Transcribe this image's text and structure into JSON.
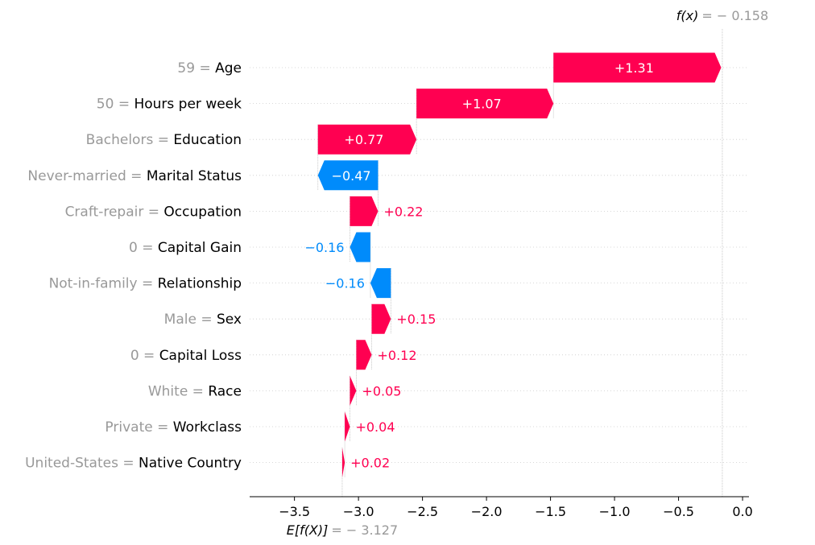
{
  "chart_data": {
    "type": "waterfall",
    "base_value": -3.127,
    "base_label_prefix": "E[f(X)]",
    "base_label_value": "= − 3.127",
    "output_value": -0.158,
    "output_label_prefix": "f(x)",
    "output_label_value": "= − 0.158",
    "xlim": [
      -3.85,
      0.05
    ],
    "xticks": [
      -3.5,
      -3.0,
      -2.5,
      -2.0,
      -1.5,
      -1.0,
      -0.5,
      0.0
    ],
    "xtick_labels": [
      "−3.5",
      "−3.0",
      "−2.5",
      "−2.0",
      "−1.5",
      "−1.0",
      "−0.5",
      "0.0"
    ],
    "features": [
      {
        "value": "59",
        "name": "Age",
        "contribution": 1.31,
        "label": "+1.31"
      },
      {
        "value": "50",
        "name": "Hours per week",
        "contribution": 1.07,
        "label": "+1.07"
      },
      {
        "value": "Bachelors",
        "name": "Education",
        "contribution": 0.77,
        "label": "+0.77"
      },
      {
        "value": "Never-married",
        "name": "Marital Status",
        "contribution": -0.47,
        "label": "−0.47"
      },
      {
        "value": "Craft-repair",
        "name": "Occupation",
        "contribution": 0.22,
        "label": "+0.22"
      },
      {
        "value": "0",
        "name": "Capital Gain",
        "contribution": -0.16,
        "label": "−0.16"
      },
      {
        "value": "Not-in-family",
        "name": "Relationship",
        "contribution": -0.16,
        "label": "−0.16"
      },
      {
        "value": "Male",
        "name": "Sex",
        "contribution": 0.15,
        "label": "+0.15"
      },
      {
        "value": "0",
        "name": "Capital Loss",
        "contribution": 0.12,
        "label": "+0.12"
      },
      {
        "value": "White",
        "name": "Race",
        "contribution": 0.05,
        "label": "+0.05"
      },
      {
        "value": "Private",
        "name": "Workclass",
        "contribution": 0.04,
        "label": "+0.04"
      },
      {
        "value": "United-States",
        "name": "Native Country",
        "contribution": 0.02,
        "label": "+0.02"
      }
    ],
    "colors": {
      "positive": "#ff0051",
      "negative": "#008bfb",
      "label_gray": "#999999"
    }
  }
}
